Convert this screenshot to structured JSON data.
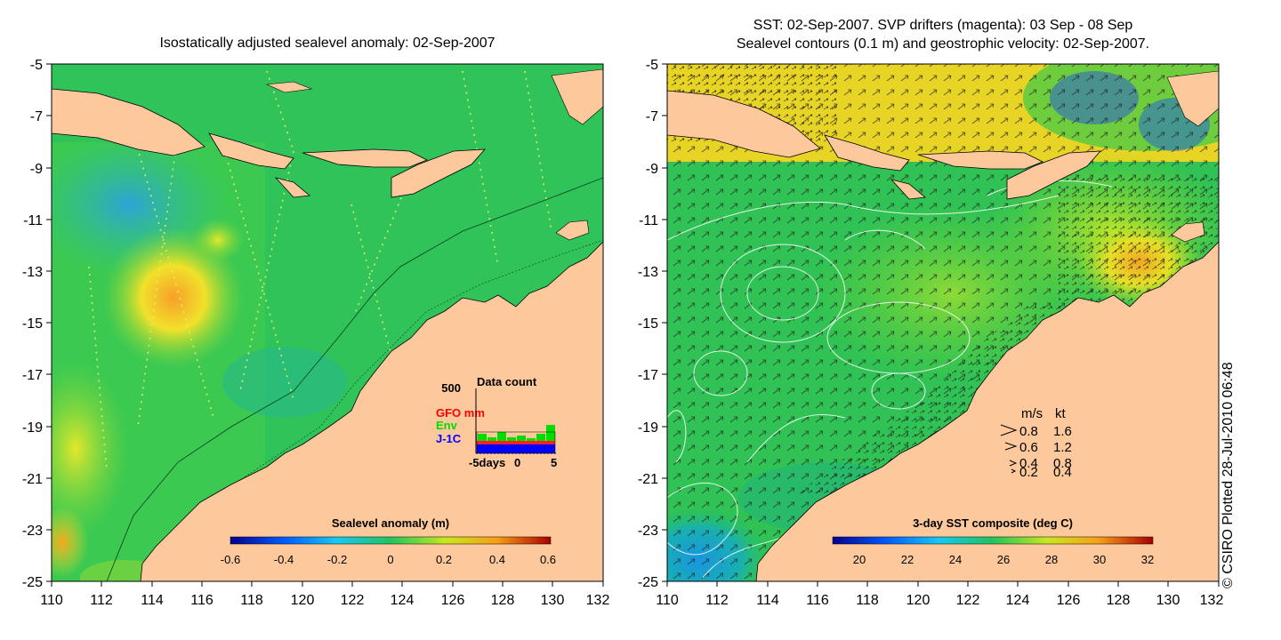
{
  "left_panel": {
    "title": "Isostatically adjusted sealevel anomaly: 02-Sep-2007",
    "y_ticks": [
      "-5",
      "-7",
      "-9",
      "-11",
      "-13",
      "-15",
      "-17",
      "-19",
      "-21",
      "-23",
      "-25"
    ],
    "x_ticks": [
      "110",
      "112",
      "114",
      "116",
      "118",
      "120",
      "122",
      "124",
      "126",
      "128",
      "130",
      "132"
    ],
    "colorbar": {
      "label": "Sealevel anomaly (m)",
      "ticks": [
        "-0.6",
        "-0.4",
        "-0.2",
        "0",
        "0.2",
        "0.4",
        "0.6"
      ]
    },
    "data_count": {
      "title": "Data count",
      "ymax": "500",
      "series": [
        {
          "name": "GFO mm",
          "color": "#ff0000"
        },
        {
          "name": "Env",
          "color": "#00dd00"
        },
        {
          "name": "J-1C",
          "color": "#0000ff"
        }
      ],
      "x_labels": [
        "-5days",
        "0",
        "5"
      ]
    }
  },
  "right_panel": {
    "title_line1": "SST: 02-Sep-2007. SVP drifters (magenta): 03 Sep - 08 Sep",
    "title_line2": "Sealevel contours (0.1 m) and geostrophic velocity: 02-Sep-2007.",
    "y_ticks": [
      "-5",
      "-7",
      "-9",
      "-11",
      "-13",
      "-15",
      "-17",
      "-19",
      "-21",
      "-23",
      "-25"
    ],
    "x_ticks": [
      "110",
      "112",
      "114",
      "116",
      "118",
      "120",
      "122",
      "124",
      "126",
      "128",
      "130",
      "132"
    ],
    "colorbar": {
      "label": "3-day SST composite (deg C)",
      "ticks": [
        "20",
        "22",
        "24",
        "26",
        "28",
        "30",
        "32"
      ]
    },
    "velocity_legend": {
      "header_ms": "m/s",
      "header_kt": "kt",
      "rows": [
        {
          "ms": "0.8",
          "kt": "1.6"
        },
        {
          "ms": "0.6",
          "kt": "1.2"
        },
        {
          "ms": "0.4",
          "kt": "0.8"
        },
        {
          "ms": "0.2",
          "kt": "0.4"
        }
      ]
    }
  },
  "credit": "© CSIRO Plotted 28-Jul-2010 06:48",
  "colors": {
    "land": "#fcc89c",
    "ocean_green": "#22c35a",
    "warm": "#f4d820",
    "cool": "#1aa0e0"
  }
}
